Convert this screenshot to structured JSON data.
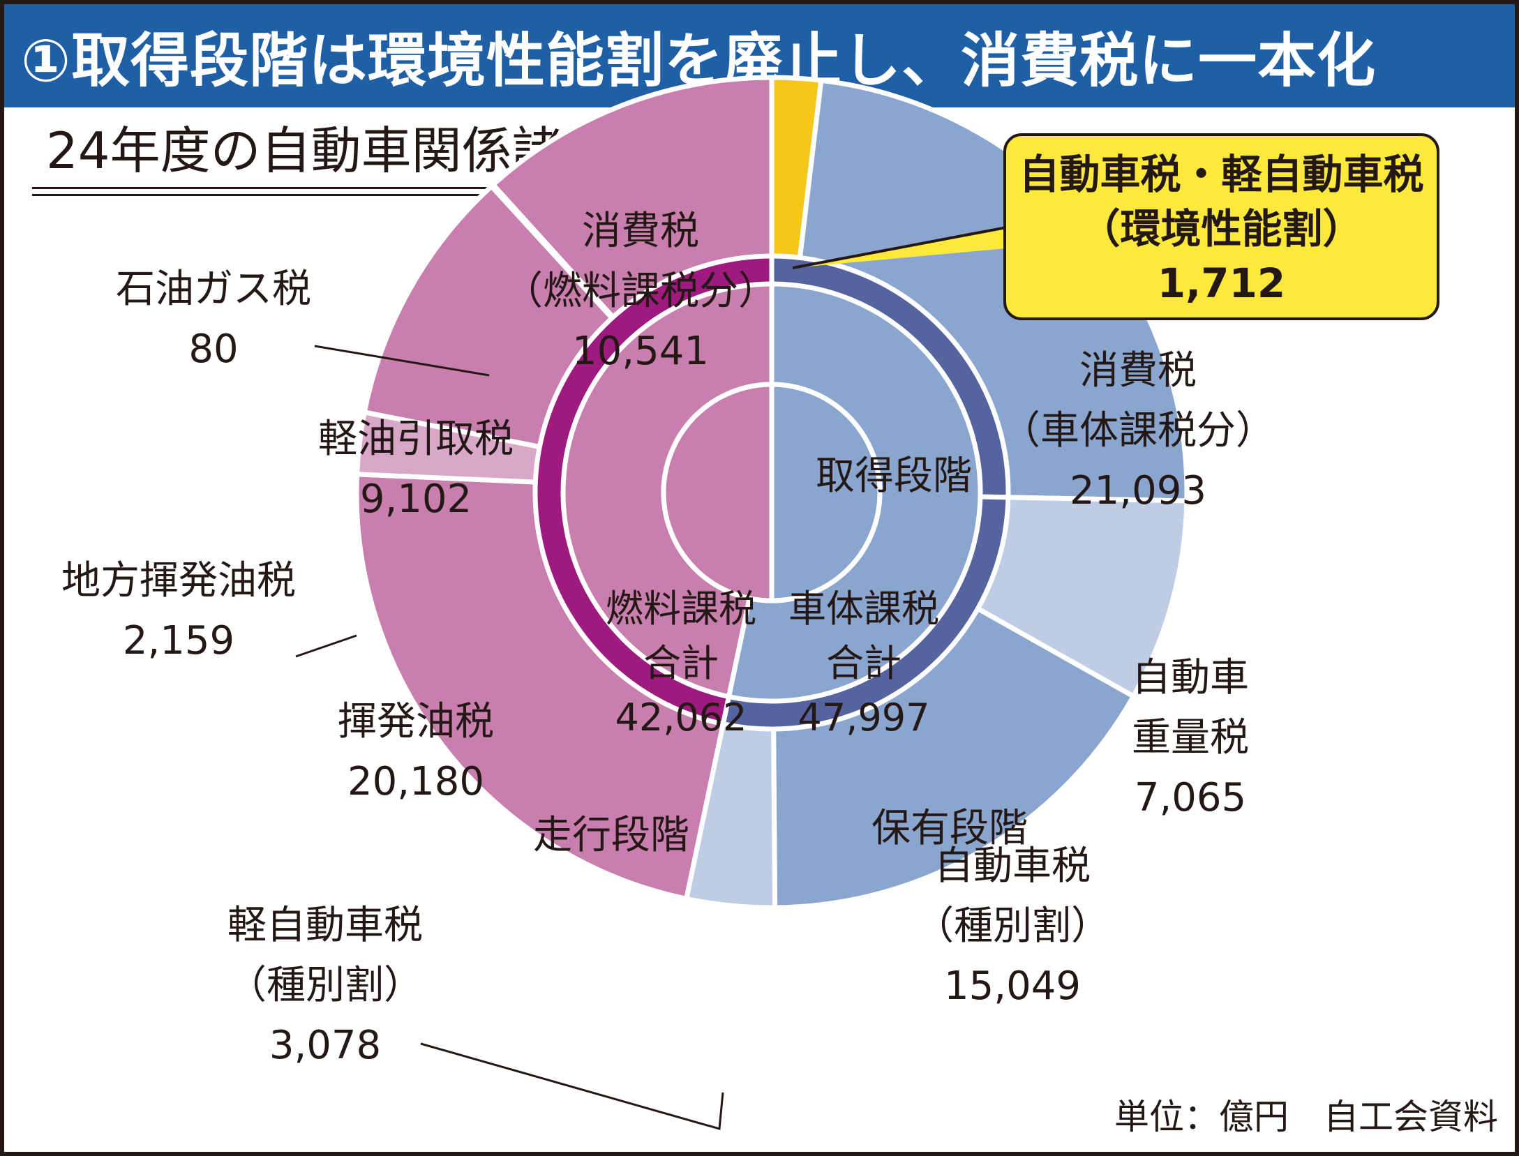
{
  "header": {
    "title": "①取得段階は環境性能割を廃止し、消費税に一本化",
    "subtitle": "24年度の自動車関係諸税の内訳"
  },
  "footer": {
    "note": "単位：億円　自工会資料"
  },
  "chart_data": {
    "type": "pie",
    "variant": "sunburst",
    "title": "24年度の自動車関係諸税の内訳",
    "unit": "億円",
    "inner": [
      {
        "label": [
          "車体課税",
          "合計"
        ],
        "value": 47997,
        "color": "#8aa6cf"
      },
      {
        "label": [
          "燃料課税",
          "合計"
        ],
        "value": 42062,
        "color": "#c97fad"
      }
    ],
    "middle": [
      {
        "label": "取得段階",
        "value": 22805,
        "color": "#55649f"
      },
      {
        "label": "保有段階",
        "value": 25192,
        "color": "#55649f"
      },
      {
        "label": "走行段階",
        "value": 42062,
        "color": "#9e1a7e"
      }
    ],
    "outer": [
      {
        "label": [
          "自動車税・軽自動車税",
          "（環境性能割）"
        ],
        "value": 1712,
        "value_text": "1,712",
        "color": "#f5c719"
      },
      {
        "label": [
          "消費税",
          "（車体課税分）"
        ],
        "value": 21093,
        "value_text": "21,093",
        "color": "#8aa6cf"
      },
      {
        "label": [
          "自動車",
          "重量税"
        ],
        "value": 7065,
        "value_text": "7,065",
        "color": "#bfcce6"
      },
      {
        "label": [
          "自動車税",
          "（種別割）"
        ],
        "value": 15049,
        "value_text": "15,049",
        "color": "#8aa6cf"
      },
      {
        "label": [
          "軽自動車税",
          "（種別割）"
        ],
        "value": 3078,
        "value_text": "3,078",
        "color": "#bfcce6"
      },
      {
        "label": [
          "揮発油税"
        ],
        "value": 20180,
        "value_text": "20,180",
        "color": "#c97fad"
      },
      {
        "label": [
          "地方揮発油税"
        ],
        "value": 2159,
        "value_text": "2,159",
        "color": "#d9a8c8"
      },
      {
        "label": [
          "軽油引取税"
        ],
        "value": 9102,
        "value_text": "9,102",
        "color": "#c97fad"
      },
      {
        "label": [
          "石油ガス税"
        ],
        "value": 80,
        "value_text": "80",
        "color": "#c97fad"
      },
      {
        "label": [
          "消費税",
          "（燃料課税分）"
        ],
        "value": 10541,
        "value_text": "10,541",
        "color": "#c97fad"
      }
    ],
    "inner_totals": [
      "47,997",
      "42,062"
    ]
  }
}
